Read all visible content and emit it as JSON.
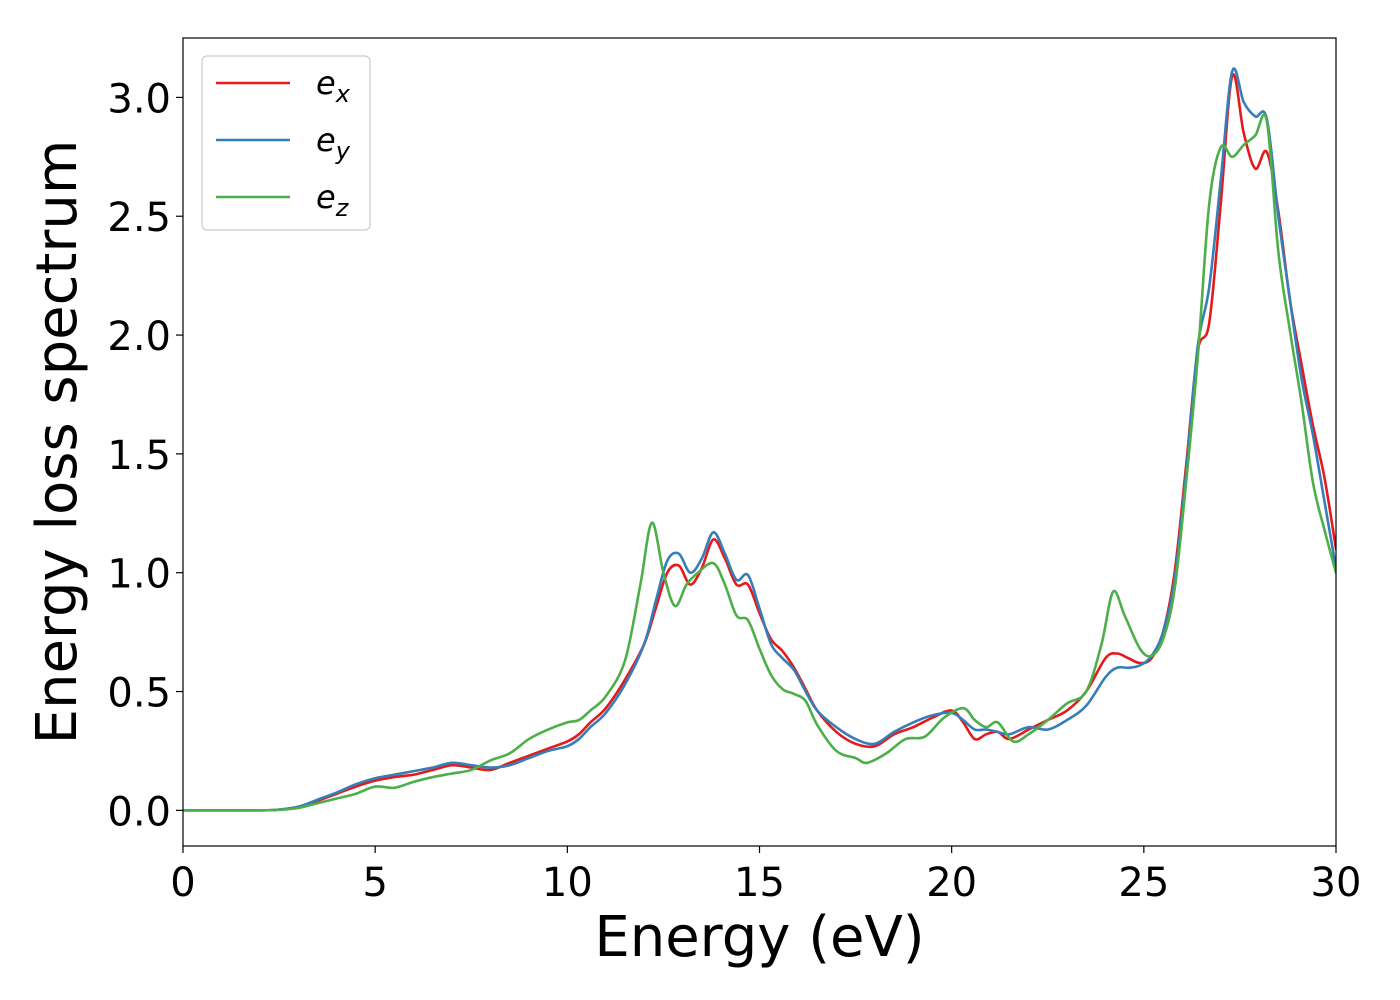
{
  "chart_data": {
    "type": "line",
    "title": "",
    "xlabel": "Energy (eV)",
    "ylabel": "Energy loss spectrum",
    "xlim": [
      0,
      30
    ],
    "ylim": [
      -0.15,
      3.25
    ],
    "xticks": [
      0,
      5,
      10,
      15,
      20,
      25,
      30
    ],
    "yticks": [
      0.0,
      0.5,
      1.0,
      1.5,
      2.0,
      2.5,
      3.0
    ],
    "xtick_labels": [
      "0",
      "5",
      "10",
      "15",
      "20",
      "25",
      "30"
    ],
    "ytick_labels": [
      "0.0",
      "0.5",
      "1.0",
      "1.5",
      "2.0",
      "2.5",
      "3.0"
    ],
    "grid": false,
    "legend_position": "top-left",
    "series": [
      {
        "name": "e_x",
        "legend_base": "e",
        "legend_sub": "x",
        "color": "#e41a1c",
        "x": [
          0,
          1,
          2,
          2.5,
          3,
          3.5,
          4,
          4.5,
          5,
          5.5,
          6,
          6.5,
          7,
          7.5,
          8,
          8.5,
          9,
          9.5,
          10,
          10.3,
          10.6,
          11,
          11.5,
          12,
          12.3,
          12.6,
          12.9,
          13.2,
          13.5,
          13.8,
          14.1,
          14.4,
          14.7,
          15,
          15.3,
          15.6,
          15.9,
          16.2,
          16.5,
          17,
          17.5,
          18,
          18.5,
          19,
          19.5,
          20,
          20.3,
          20.6,
          20.9,
          21.2,
          21.5,
          22,
          22.5,
          23,
          23.5,
          24,
          24.3,
          24.6,
          24.9,
          25.2,
          25.5,
          25.8,
          26.1,
          26.4,
          26.7,
          27,
          27.3,
          27.6,
          27.9,
          28.2,
          28.5,
          28.8,
          29.1,
          29.4,
          29.7,
          30
        ],
        "y": [
          0.0,
          0.0,
          0.0,
          0.003,
          0.015,
          0.04,
          0.07,
          0.1,
          0.125,
          0.14,
          0.15,
          0.17,
          0.19,
          0.18,
          0.17,
          0.2,
          0.23,
          0.26,
          0.29,
          0.32,
          0.37,
          0.43,
          0.55,
          0.7,
          0.85,
          1.0,
          1.03,
          0.95,
          1.02,
          1.14,
          1.06,
          0.95,
          0.95,
          0.83,
          0.72,
          0.67,
          0.6,
          0.51,
          0.42,
          0.33,
          0.28,
          0.27,
          0.32,
          0.35,
          0.39,
          0.42,
          0.37,
          0.3,
          0.32,
          0.33,
          0.3,
          0.34,
          0.38,
          0.42,
          0.5,
          0.64,
          0.66,
          0.64,
          0.62,
          0.64,
          0.75,
          1.0,
          1.45,
          1.93,
          2.05,
          2.55,
          3.09,
          2.85,
          2.7,
          2.77,
          2.52,
          2.15,
          1.88,
          1.62,
          1.4,
          1.1
        ]
      },
      {
        "name": "e_y",
        "legend_base": "e",
        "legend_sub": "y",
        "color": "#377eb8",
        "x": [
          0,
          1,
          2,
          2.5,
          3,
          3.5,
          4,
          4.5,
          5,
          5.5,
          6,
          6.5,
          7,
          7.5,
          8,
          8.5,
          9,
          9.5,
          10,
          10.3,
          10.6,
          11,
          11.5,
          12,
          12.3,
          12.6,
          12.9,
          13.2,
          13.5,
          13.8,
          14.1,
          14.4,
          14.7,
          15,
          15.3,
          15.6,
          15.9,
          16.2,
          16.5,
          17,
          17.5,
          18,
          18.5,
          19,
          19.5,
          20,
          20.3,
          20.6,
          20.9,
          21.2,
          21.5,
          22,
          22.5,
          23,
          23.5,
          24,
          24.3,
          24.6,
          24.9,
          25.2,
          25.5,
          25.8,
          26.1,
          26.4,
          26.7,
          27,
          27.3,
          27.6,
          27.9,
          28.2,
          28.5,
          28.8,
          29.1,
          29.4,
          29.7,
          30
        ],
        "y": [
          0.0,
          0.0,
          0.0,
          0.003,
          0.015,
          0.045,
          0.075,
          0.11,
          0.135,
          0.15,
          0.165,
          0.18,
          0.2,
          0.19,
          0.18,
          0.19,
          0.22,
          0.25,
          0.27,
          0.3,
          0.35,
          0.41,
          0.53,
          0.7,
          0.88,
          1.05,
          1.08,
          1.0,
          1.06,
          1.17,
          1.08,
          0.97,
          0.99,
          0.85,
          0.7,
          0.64,
          0.59,
          0.5,
          0.42,
          0.35,
          0.3,
          0.28,
          0.33,
          0.37,
          0.4,
          0.41,
          0.38,
          0.34,
          0.34,
          0.33,
          0.32,
          0.35,
          0.34,
          0.38,
          0.44,
          0.56,
          0.6,
          0.6,
          0.61,
          0.65,
          0.75,
          0.97,
          1.42,
          1.95,
          2.2,
          2.65,
          3.11,
          2.98,
          2.92,
          2.91,
          2.5,
          2.15,
          1.82,
          1.58,
          1.3,
          1.02
        ]
      },
      {
        "name": "e_z",
        "legend_base": "e",
        "legend_sub": "z",
        "color": "#4daf4a",
        "x": [
          0,
          1,
          2,
          2.5,
          3,
          3.5,
          4,
          4.5,
          5,
          5.5,
          6,
          6.5,
          7,
          7.5,
          8,
          8.5,
          9,
          9.5,
          10,
          10.3,
          10.6,
          11,
          11.5,
          11.9,
          12.2,
          12.5,
          12.8,
          13.1,
          13.4,
          13.8,
          14.1,
          14.4,
          14.7,
          15,
          15.3,
          15.6,
          15.9,
          16.2,
          16.5,
          17,
          17.5,
          17.8,
          18.3,
          18.8,
          19.3,
          19.8,
          20.3,
          20.6,
          20.9,
          21.2,
          21.6,
          22,
          22.5,
          23,
          23.5,
          23.9,
          24.2,
          24.5,
          24.9,
          25.2,
          25.5,
          25.8,
          26.1,
          26.4,
          26.7,
          27,
          27.3,
          27.6,
          27.9,
          28.2,
          28.5,
          28.8,
          29.1,
          29.4,
          29.7,
          30
        ],
        "y": [
          0.0,
          0.0,
          0.0,
          0.002,
          0.01,
          0.03,
          0.05,
          0.07,
          0.1,
          0.095,
          0.12,
          0.14,
          0.155,
          0.17,
          0.21,
          0.24,
          0.3,
          0.34,
          0.37,
          0.38,
          0.42,
          0.48,
          0.63,
          0.95,
          1.21,
          1.0,
          0.86,
          0.95,
          1.0,
          1.04,
          0.95,
          0.82,
          0.8,
          0.68,
          0.57,
          0.51,
          0.49,
          0.46,
          0.36,
          0.25,
          0.22,
          0.2,
          0.24,
          0.3,
          0.31,
          0.39,
          0.43,
          0.38,
          0.35,
          0.37,
          0.29,
          0.32,
          0.38,
          0.45,
          0.5,
          0.7,
          0.92,
          0.82,
          0.68,
          0.65,
          0.72,
          0.93,
          1.38,
          1.9,
          2.55,
          2.79,
          2.75,
          2.8,
          2.84,
          2.9,
          2.35,
          2.02,
          1.72,
          1.38,
          1.18,
          1.0
        ]
      }
    ]
  }
}
